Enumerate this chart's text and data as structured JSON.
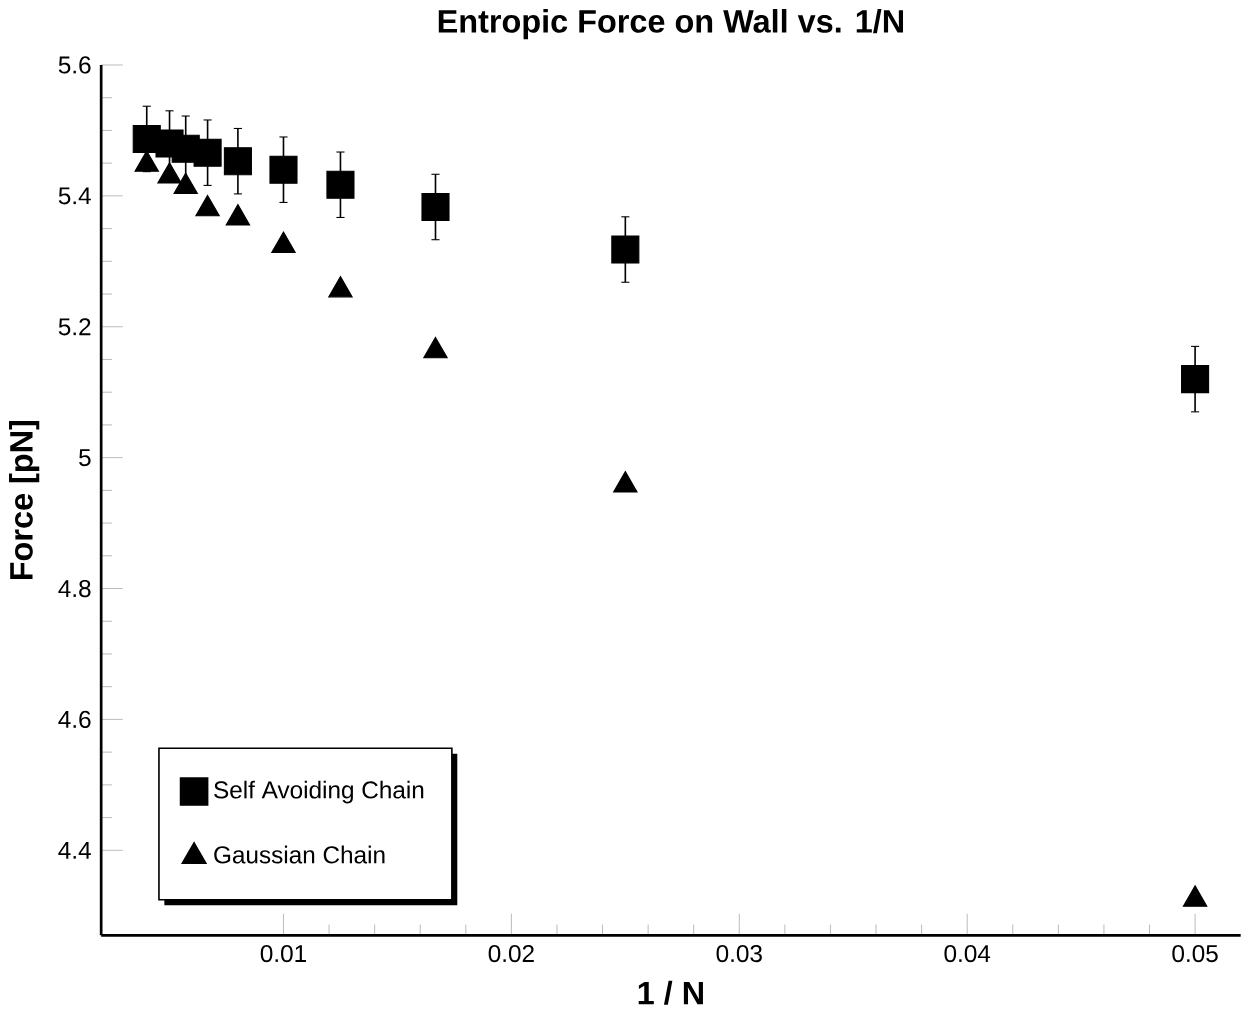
{
  "chart_data": {
    "type": "scatter",
    "title": "Entropic Force on Wall vs. 1/N",
    "xlabel": "1 / N",
    "ylabel": "Force [pN]",
    "x": [
      0.004,
      0.005,
      0.00571,
      0.00667,
      0.008,
      0.01,
      0.0125,
      0.01667,
      0.025,
      0.05
    ],
    "series": [
      {
        "name": "Self Avoiding Chain",
        "color": "#000000",
        "marker": "square",
        "values": [
          5.487,
          5.48,
          5.472,
          5.466,
          5.453,
          5.44,
          5.417,
          5.383,
          5.318,
          5.12
        ],
        "errors": [
          0.05,
          0.05,
          0.05,
          0.05,
          0.05,
          0.05,
          0.05,
          0.05,
          0.05,
          0.05
        ]
      },
      {
        "name": "Gaussian Chain",
        "color": "#000000",
        "marker": "triangle",
        "values": [
          5.448,
          5.43,
          5.414,
          5.38,
          5.366,
          5.324,
          5.256,
          5.163,
          4.958,
          4.325
        ]
      }
    ],
    "xlim": [
      0.002,
      0.052
    ],
    "ylim": [
      4.27,
      5.6
    ],
    "xticks": [
      0.01,
      0.02,
      0.03,
      0.04,
      0.05
    ],
    "yticks": [
      4.4,
      4.6,
      4.8,
      5,
      5.2,
      5.4,
      5.6
    ],
    "legend": "bottom left"
  }
}
